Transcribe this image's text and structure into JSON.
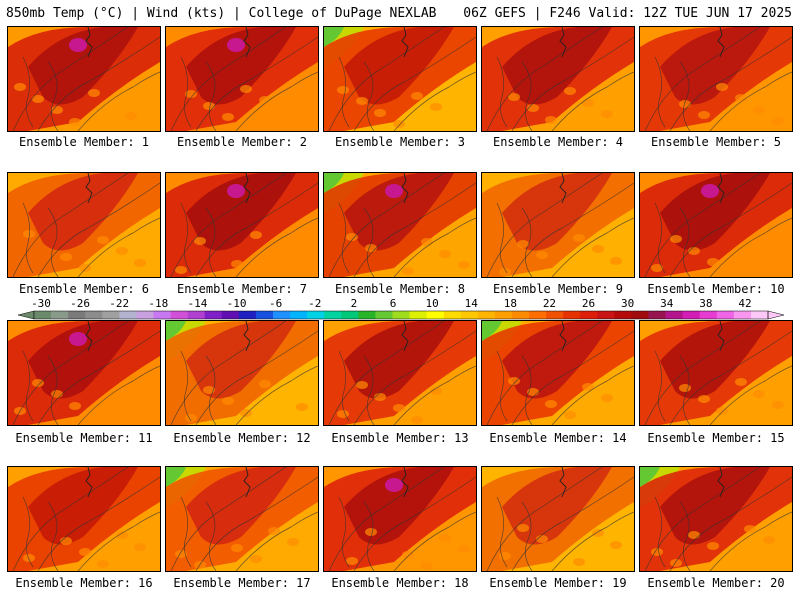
{
  "header": {
    "left": "850mb Temp (°C) | Wind (kts) | College of DuPage NEXLAB",
    "right": "06Z GEFS | F246 Valid: 12Z TUE JUN 17 2025"
  },
  "members": [
    {
      "label": "Ensemble Member: 1",
      "base": "#ff9900",
      "hot": "#d61a0a",
      "core": "#a80c0c",
      "extreme": "#c81890",
      "green": false
    },
    {
      "label": "Ensemble Member: 2",
      "base": "#ff8c00",
      "hot": "#dc1e0a",
      "core": "#a80c0c",
      "extreme": "#c81890",
      "green": false
    },
    {
      "label": "Ensemble Member: 3",
      "base": "#ffb400",
      "hot": "#e63200",
      "core": "#c01408",
      "extreme": null,
      "green": true
    },
    {
      "label": "Ensemble Member: 4",
      "base": "#ffa000",
      "hot": "#dc1e0a",
      "core": "#a80c0c",
      "extreme": null,
      "green": false
    },
    {
      "label": "Ensemble Member: 5",
      "base": "#ff9600",
      "hot": "#e02808",
      "core": "#b01010",
      "extreme": null,
      "green": false
    },
    {
      "label": "Ensemble Member: 6",
      "base": "#ffaa00",
      "hot": "#f05a00",
      "core": "#d02010",
      "extreme": null,
      "green": false
    },
    {
      "label": "Ensemble Member: 7",
      "base": "#ff8c00",
      "hot": "#d61a0a",
      "core": "#a00c0c",
      "extreme": "#c81890",
      "green": false
    },
    {
      "label": "Ensemble Member: 8",
      "base": "#ffa500",
      "hot": "#e03000",
      "core": "#b01010",
      "extreme": "#c81890",
      "green": true
    },
    {
      "label": "Ensemble Member: 9",
      "base": "#ffb000",
      "hot": "#f06400",
      "core": "#d02810",
      "extreme": null,
      "green": false
    },
    {
      "label": "Ensemble Member: 10",
      "base": "#ff8c00",
      "hot": "#d61a0a",
      "core": "#a00c0c",
      "extreme": "#c81890",
      "green": false
    },
    {
      "label": "Ensemble Member: 11",
      "base": "#ff8c00",
      "hot": "#d61a0a",
      "core": "#a80c0c",
      "extreme": "#c81890",
      "green": false
    },
    {
      "label": "Ensemble Member: 12",
      "base": "#ffb400",
      "hot": "#f06000",
      "core": "#d02810",
      "extreme": null,
      "green": true
    },
    {
      "label": "Ensemble Member: 13",
      "base": "#ffa000",
      "hot": "#e02808",
      "core": "#a80c0c",
      "extreme": null,
      "green": false
    },
    {
      "label": "Ensemble Member: 14",
      "base": "#ffaa00",
      "hot": "#e63200",
      "core": "#b41010",
      "extreme": null,
      "green": true
    },
    {
      "label": "Ensemble Member: 15",
      "base": "#ffa000",
      "hot": "#e02808",
      "core": "#a80c0c",
      "extreme": null,
      "green": false
    },
    {
      "label": "Ensemble Member: 16",
      "base": "#ffa000",
      "hot": "#e63200",
      "core": "#c01408",
      "extreme": null,
      "green": false
    },
    {
      "label": "Ensemble Member: 17",
      "base": "#ffaa00",
      "hot": "#f05000",
      "core": "#d02010",
      "extreme": null,
      "green": true
    },
    {
      "label": "Ensemble Member: 18",
      "base": "#ff9600",
      "hot": "#dc1e0a",
      "core": "#a80c0c",
      "extreme": "#c81890",
      "green": false
    },
    {
      "label": "Ensemble Member: 19",
      "base": "#ffb400",
      "hot": "#f06400",
      "core": "#d02810",
      "extreme": null,
      "green": false
    },
    {
      "label": "Ensemble Member: 20",
      "base": "#ffa000",
      "hot": "#dc1e0a",
      "core": "#a80c0c",
      "extreme": null,
      "green": true
    }
  ],
  "colorbar": {
    "ticks": [
      "-30",
      "-26",
      "-22",
      "-18",
      "-14",
      "-10",
      "-6",
      "-2",
      "2",
      "6",
      "10",
      "14",
      "18",
      "22",
      "26",
      "30",
      "34",
      "38",
      "42"
    ],
    "colors": [
      "#6a8a6a",
      "#8a9a8a",
      "#7a7a7a",
      "#8c8c8c",
      "#a0a0a0",
      "#b4b4d0",
      "#c8a0e0",
      "#c878f0",
      "#d050d8",
      "#b040d0",
      "#8020c8",
      "#6010b0",
      "#2020c0",
      "#1850e0",
      "#1e90ff",
      "#00b4ff",
      "#00d2e6",
      "#00d2a0",
      "#00c878",
      "#28b428",
      "#64c832",
      "#a0dc1e",
      "#dcf000",
      "#ffff00",
      "#ffdc00",
      "#ffc800",
      "#ffb400",
      "#ffa000",
      "#ff8c00",
      "#ff6e00",
      "#f05000",
      "#e63200",
      "#dc1e0a",
      "#c81414",
      "#b40a0a",
      "#a00c0c",
      "#961450",
      "#b4148c",
      "#d21eb4",
      "#e63cd2",
      "#f064e6",
      "#f896f0",
      "#fcc8f8"
    ]
  }
}
